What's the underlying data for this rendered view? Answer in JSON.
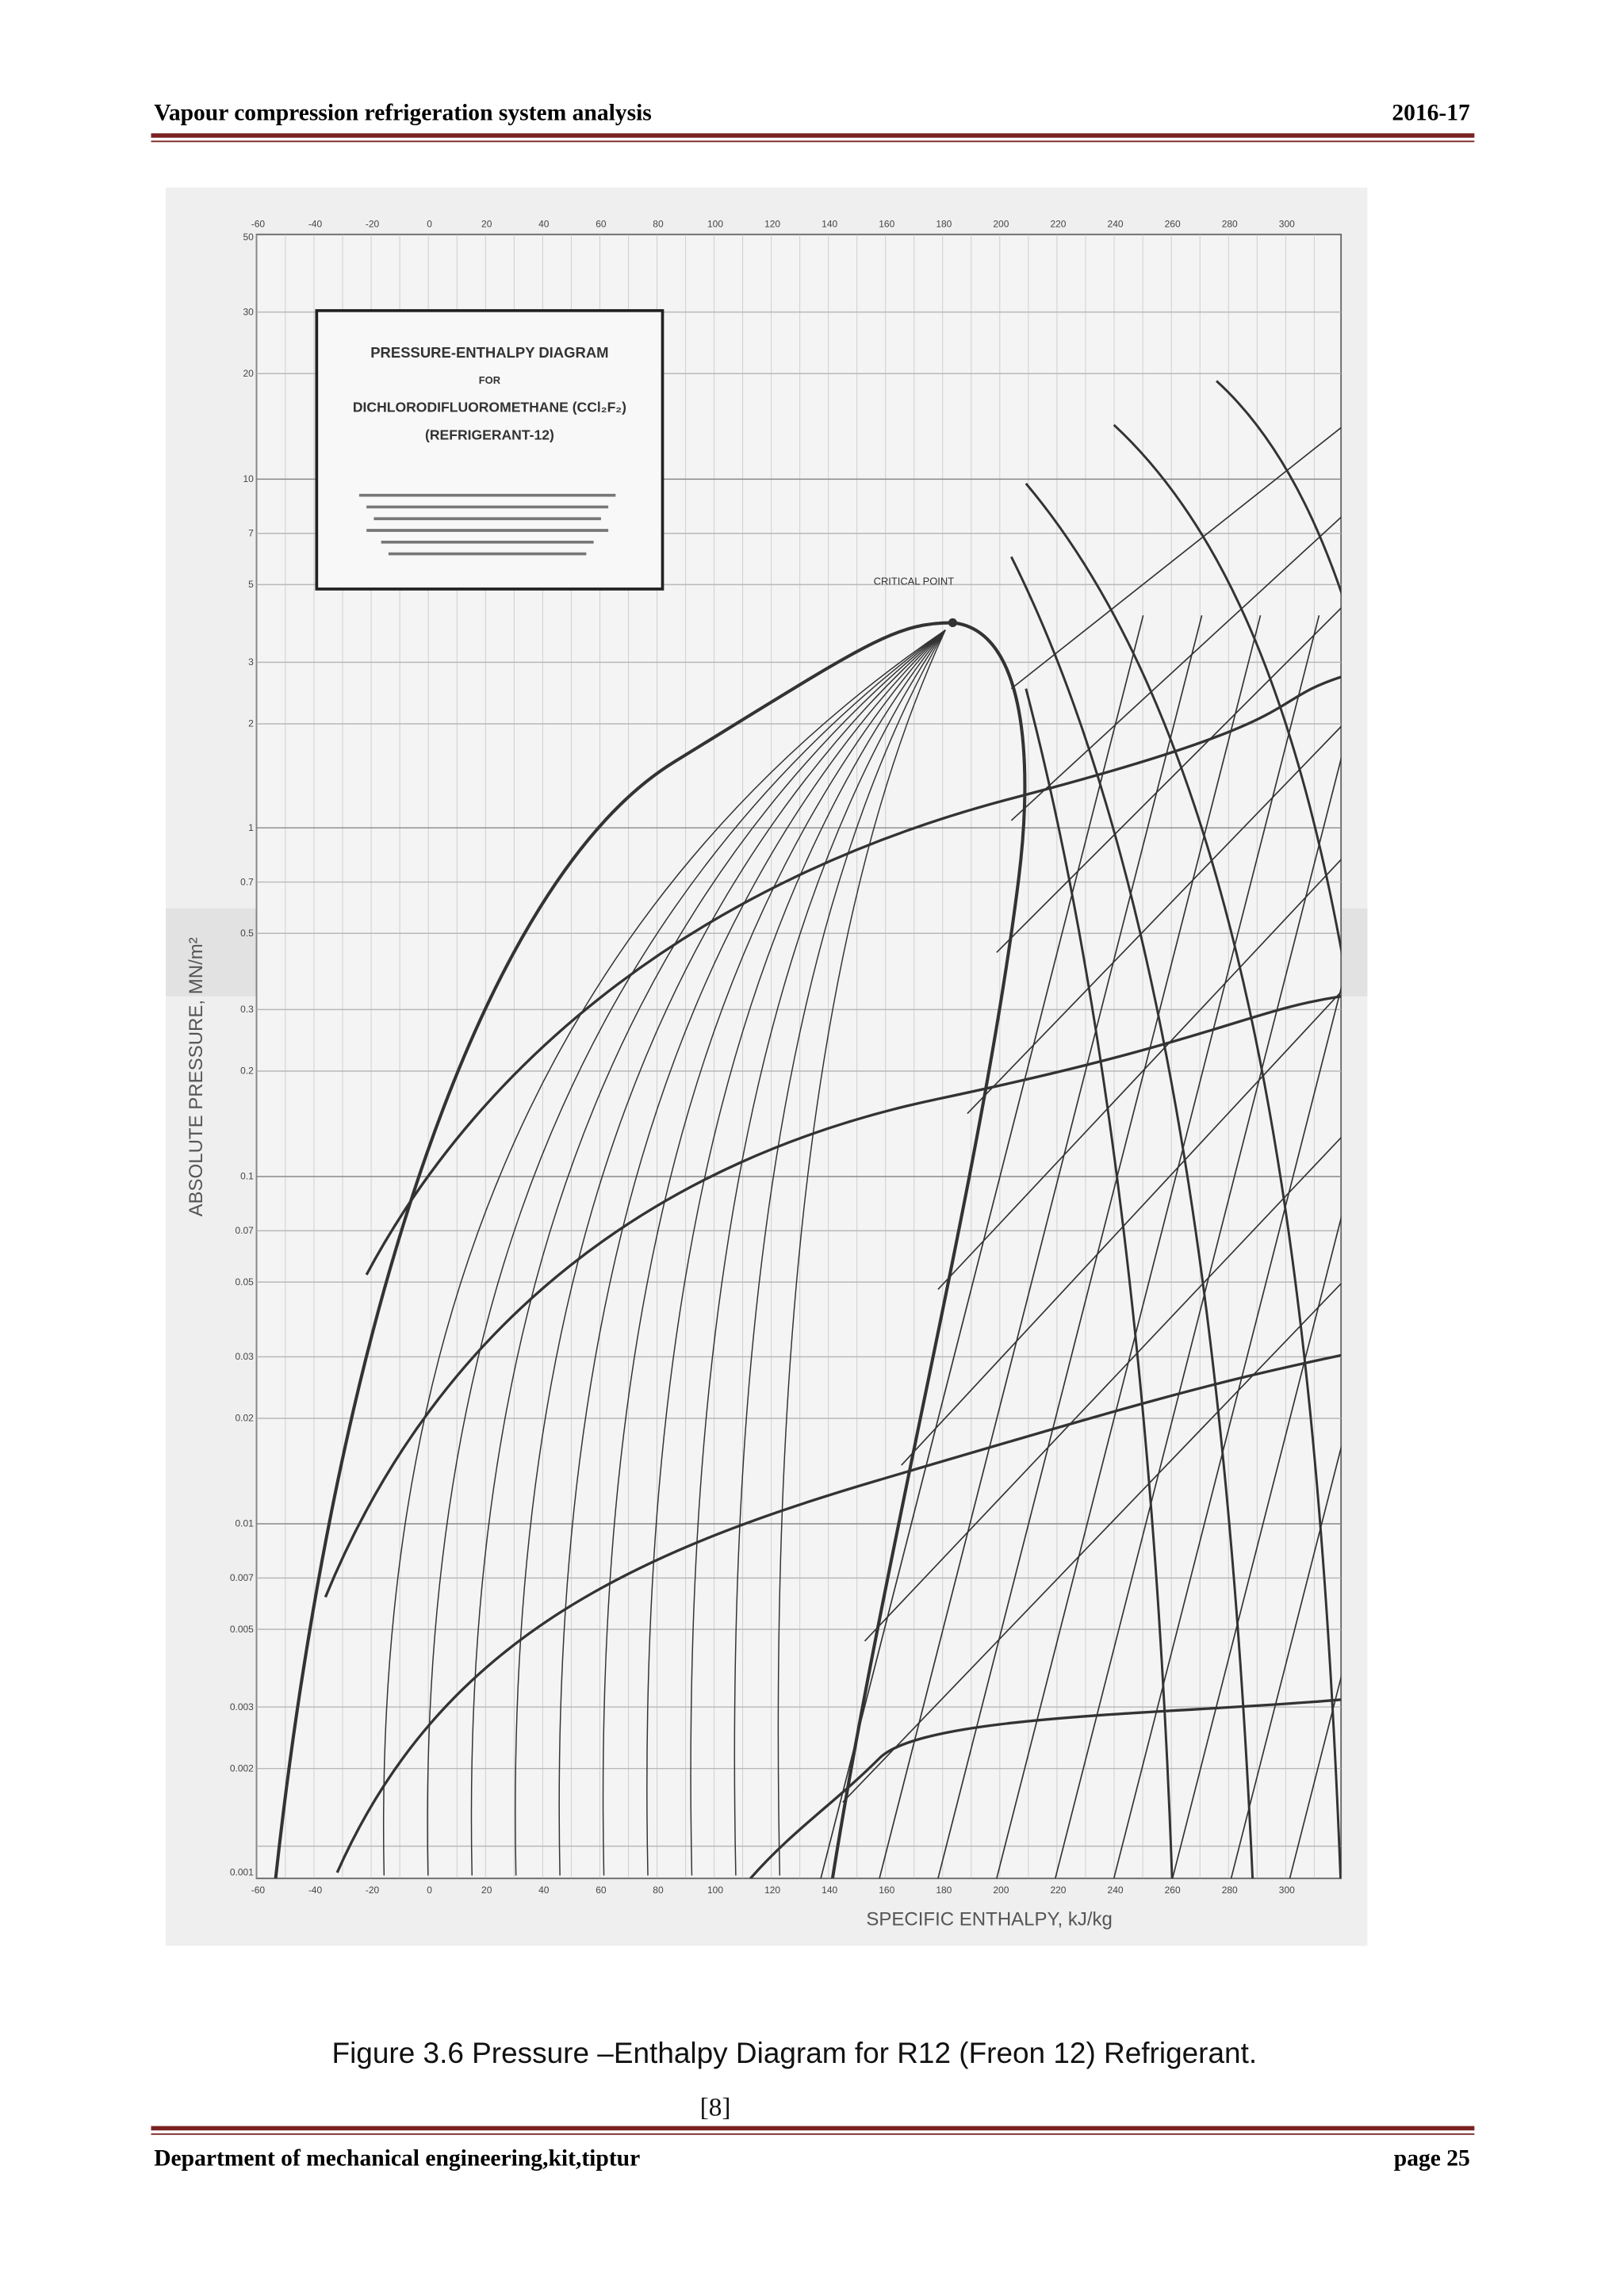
{
  "header": {
    "title": "Vapour compression refrigeration system analysis",
    "year": "2016-17"
  },
  "figure": {
    "diagram_title": [
      "PRESSURE-ENTHALPY DIAGRAM",
      "FOR",
      "DICHLORODIFLUOROMETHANE (CCl₂F₂)",
      "(REFRIGERANT-12)"
    ],
    "annotation": "CRITICAL POINT",
    "y_axis_label": "ABSOLUTE PRESSURE, MN/m²",
    "x_axis_label": "SPECIFIC ENTHALPY, kJ/kg",
    "x_ticks": [
      "-60",
      "-40",
      "-20",
      "0",
      "20",
      "40",
      "60",
      "80",
      "100",
      "120",
      "140",
      "160",
      "180",
      "200",
      "220",
      "240",
      "260",
      "280",
      "300"
    ],
    "y_ticks": [
      "50",
      "30",
      "20",
      "10",
      "7",
      "5",
      "3",
      "2",
      "1",
      "0.7",
      "0.5",
      "0.3",
      "0.2",
      "0.1",
      "0.07",
      "0.05",
      "0.03",
      "0.02",
      "0.01",
      "0.007",
      "0.005",
      "0.003",
      "0.002",
      "0.001"
    ]
  },
  "caption": "Figure 3.6 Pressure –Enthalpy Diagram for R12 (Freon 12) Refrigerant.",
  "reference": "[8]",
  "footer": {
    "department": "Department of mechanical engineering,kit,tiptur",
    "page": "page 25"
  }
}
